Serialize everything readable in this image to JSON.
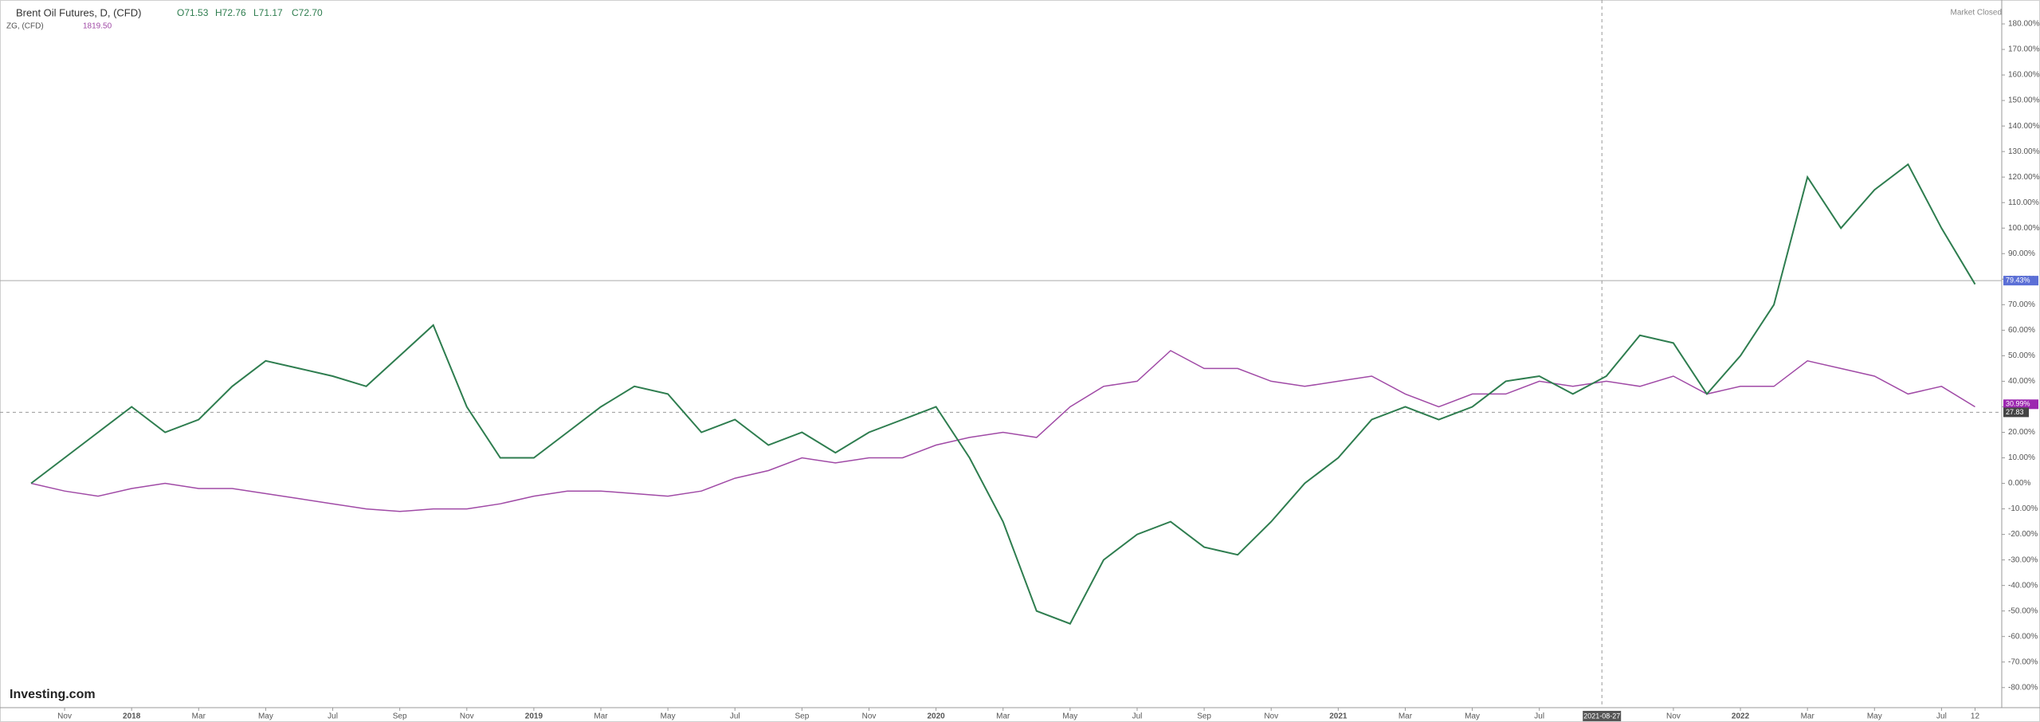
{
  "chart_data": {
    "type": "line",
    "ohlc": [
      "O71.53",
      "H72.76",
      "L71.17",
      "C72.70"
    ],
    "status": "Market Closed",
    "brand": "Investing.com",
    "categories": [
      null,
      "Nov",
      null,
      "2018",
      null,
      "Mar",
      null,
      "May",
      null,
      "Jul",
      null,
      "Sep",
      null,
      "Nov",
      null,
      "2019",
      null,
      "Mar",
      null,
      "May",
      null,
      "Jul",
      null,
      "Sep",
      null,
      "Nov",
      null,
      "2020",
      null,
      "Mar",
      null,
      "May",
      null,
      "Jul",
      null,
      "Sep",
      null,
      "Nov",
      null,
      "2021",
      null,
      "Mar",
      null,
      "May",
      null,
      "Jul",
      null,
      null,
      null,
      "Nov",
      null,
      "2022",
      null,
      "Mar",
      null,
      "May",
      null,
      "Jul",
      "12"
    ],
    "series": [
      {
        "name": "Brent Oil Futures, D, (CFD)",
        "color": "#2e7d4f",
        "values": [
          0,
          10,
          20,
          30,
          20,
          25,
          38,
          48,
          45,
          42,
          38,
          50,
          62,
          30,
          10,
          10,
          20,
          30,
          38,
          35,
          20,
          25,
          15,
          20,
          12,
          20,
          25,
          30,
          10,
          -15,
          -50,
          -55,
          -30,
          -20,
          -15,
          -25,
          -28,
          -15,
          0,
          10,
          25,
          30,
          25,
          30,
          40,
          42,
          35,
          42,
          58,
          55,
          35,
          50,
          70,
          120,
          100,
          115,
          125,
          100,
          78
        ]
      },
      {
        "name": "ZG, (CFD)",
        "color": "#a04aa6",
        "header_value": "1819.50",
        "values": [
          0,
          -3,
          -5,
          -2,
          0,
          -2,
          -2,
          -4,
          -6,
          -8,
          -10,
          -11,
          -10,
          -10,
          -8,
          -5,
          -3,
          -3,
          -4,
          -5,
          -3,
          2,
          5,
          10,
          8,
          10,
          10,
          15,
          18,
          20,
          18,
          30,
          38,
          40,
          52,
          45,
          45,
          40,
          38,
          40,
          42,
          35,
          30,
          35,
          35,
          40,
          38,
          40,
          38,
          42,
          35,
          38,
          38,
          48,
          45,
          42,
          35,
          38,
          30
        ]
      }
    ],
    "price_lines": [
      {
        "value": 79.43,
        "label": "79.43%",
        "color": "#5b6fd6"
      },
      {
        "value": 30.99,
        "label": "30.99%",
        "color": "#9c27b0"
      }
    ],
    "crosshair": {
      "x": "2021-08-27",
      "y": {
        "value": 27.83,
        "label": "27.83"
      }
    },
    "ylim": [
      -86,
      185
    ],
    "yticks": [
      {
        "value": -80,
        "label": "-80.00%"
      },
      {
        "value": -70,
        "label": "-70.00%"
      },
      {
        "value": -60,
        "label": "-60.00%"
      },
      {
        "value": -50,
        "label": "-50.00%"
      },
      {
        "value": -40,
        "label": "-40.00%"
      },
      {
        "value": -30,
        "label": "-30.00%"
      },
      {
        "value": -20,
        "label": "-20.00%"
      },
      {
        "value": -10,
        "label": "-10.00%"
      },
      {
        "value": 0,
        "label": "0.00%"
      },
      {
        "value": 10,
        "label": "10.00%"
      },
      {
        "value": 20,
        "label": "20.00%"
      },
      {
        "value": 30,
        "label": "30.00%"
      },
      {
        "value": 40,
        "label": "40.00%"
      },
      {
        "value": 50,
        "label": "50.00%"
      },
      {
        "value": 60,
        "label": "60.00%"
      },
      {
        "value": 70,
        "label": "70.00%"
      },
      {
        "value": 80,
        "label": "80.00%"
      },
      {
        "value": 90,
        "label": "90.00%"
      },
      {
        "value": 100,
        "label": "100.00%"
      },
      {
        "value": 110,
        "label": "110.00%"
      },
      {
        "value": 120,
        "label": "120.00%"
      },
      {
        "value": 130,
        "label": "130.00%"
      },
      {
        "value": 140,
        "label": "140.00%"
      },
      {
        "value": 150,
        "label": "150.00%"
      },
      {
        "value": 160,
        "label": "160.00%"
      },
      {
        "value": 170,
        "label": "170.00%"
      },
      {
        "value": 180,
        "label": "180.00%"
      }
    ]
  }
}
